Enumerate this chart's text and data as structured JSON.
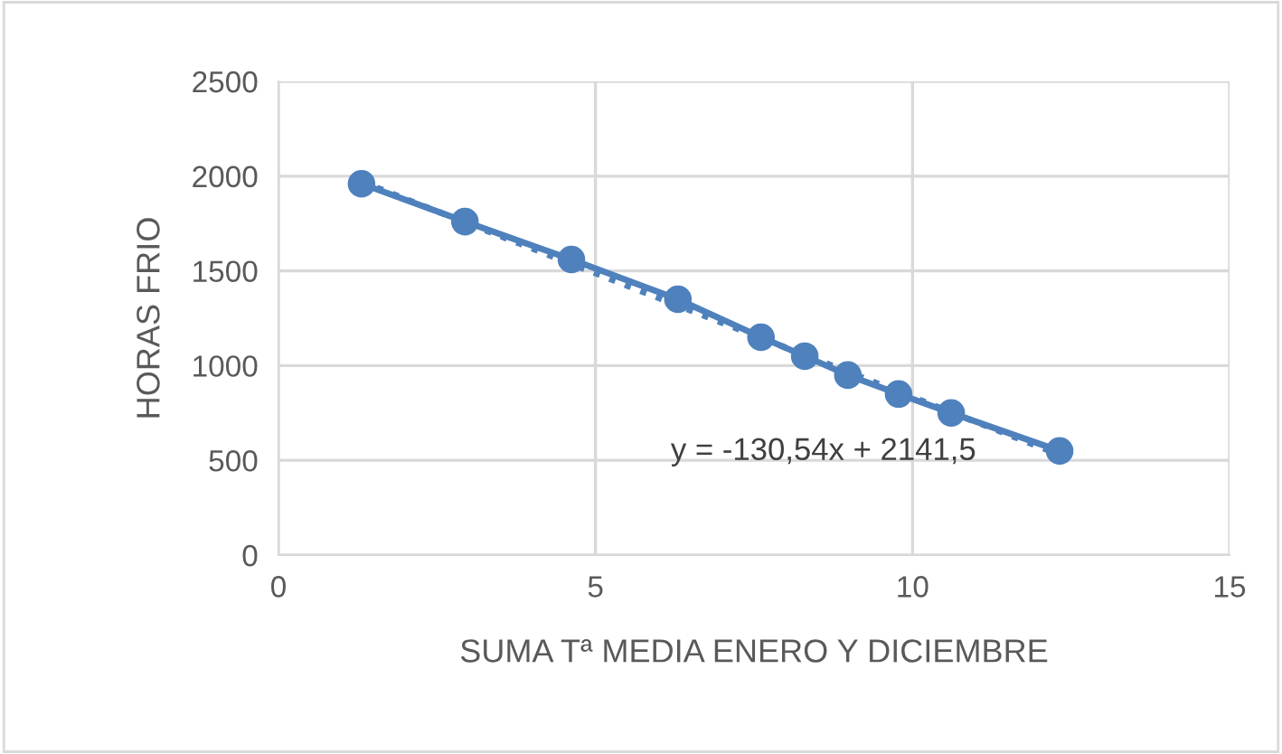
{
  "chart_data": {
    "type": "line",
    "xlabel": "SUMA Tª MEDIA ENERO Y DICIEMBRE",
    "ylabel": "HORAS FRIO",
    "series": [
      {
        "color": "#4f81bd",
        "marker": "circle",
        "line_style": "solid",
        "x": [
          1.31,
          2.94,
          4.62,
          6.3,
          7.61,
          8.3,
          8.98,
          9.78,
          10.61,
          12.32
        ],
        "values": [
          1960,
          1760,
          1560,
          1350,
          1150,
          1050,
          950,
          850,
          750,
          550
        ]
      },
      {
        "color": "#4f81bd",
        "marker": "none",
        "line_style": "dotted",
        "x": [
          1.31,
          12.32
        ],
        "values": [
          1970,
          530
        ]
      }
    ],
    "annotations": [
      "y = -130,54x + 2141,5"
    ],
    "xlim": [
      0,
      15
    ],
    "xticks": [
      0,
      5,
      10,
      15
    ],
    "ylim": [
      0,
      2500
    ],
    "yticks": [
      0,
      500,
      1000,
      1500,
      2000,
      2500
    ],
    "grid": true,
    "legend": false
  }
}
